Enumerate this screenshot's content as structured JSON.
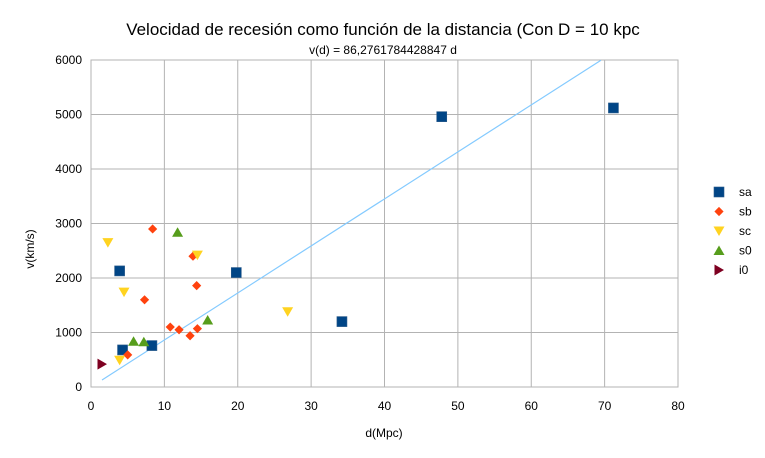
{
  "chart_data": {
    "type": "scatter",
    "title": "Velocidad de recesión como función de la distancia (Con D = 10 kpc",
    "subtitle": "v(d) = 86,2761784428847 d",
    "xlabel": "d(Mpc)",
    "ylabel": "v(km/s)",
    "xlim": [
      0,
      80
    ],
    "ylim": [
      0,
      6000
    ],
    "x_ticks": [
      0,
      10,
      20,
      30,
      40,
      50,
      60,
      70,
      80
    ],
    "y_ticks": [
      0,
      1000,
      2000,
      3000,
      4000,
      5000,
      6000
    ],
    "grid": true,
    "legend_position": "right",
    "trendline": {
      "label": "v(d) = 86,2761784428847 d",
      "slope": 86.2761784428847,
      "intercept": 0,
      "x_range": [
        1.5,
        69.5
      ],
      "color": "#83CAFF"
    },
    "series": [
      {
        "name": "sa",
        "marker": "square",
        "color": "#004586",
        "points": [
          [
            3.9,
            2130
          ],
          [
            4.3,
            680
          ],
          [
            8.3,
            760
          ],
          [
            19.8,
            2100
          ],
          [
            34.2,
            1200
          ],
          [
            47.8,
            4960
          ],
          [
            71.2,
            5120
          ]
        ]
      },
      {
        "name": "sb",
        "marker": "diamond",
        "color": "#FF420E",
        "points": [
          [
            5.0,
            590
          ],
          [
            7.3,
            1600
          ],
          [
            8.4,
            2900
          ],
          [
            10.8,
            1100
          ],
          [
            12.0,
            1050
          ],
          [
            13.5,
            940
          ],
          [
            13.9,
            2400
          ],
          [
            14.4,
            1860
          ],
          [
            14.5,
            1070
          ]
        ]
      },
      {
        "name": "sc",
        "marker": "triangle-down",
        "color": "#FFD320",
        "points": [
          [
            2.3,
            2650
          ],
          [
            3.9,
            490
          ],
          [
            4.5,
            1740
          ],
          [
            14.5,
            2420
          ],
          [
            26.8,
            1380
          ]
        ]
      },
      {
        "name": "s0",
        "marker": "triangle-up",
        "color": "#579D1C",
        "points": [
          [
            5.8,
            840
          ],
          [
            7.2,
            830
          ],
          [
            11.8,
            2840
          ],
          [
            15.9,
            1230
          ]
        ]
      },
      {
        "name": "i0",
        "marker": "triangle-right",
        "color": "#7E0021",
        "points": [
          [
            1.5,
            420
          ]
        ]
      }
    ]
  }
}
